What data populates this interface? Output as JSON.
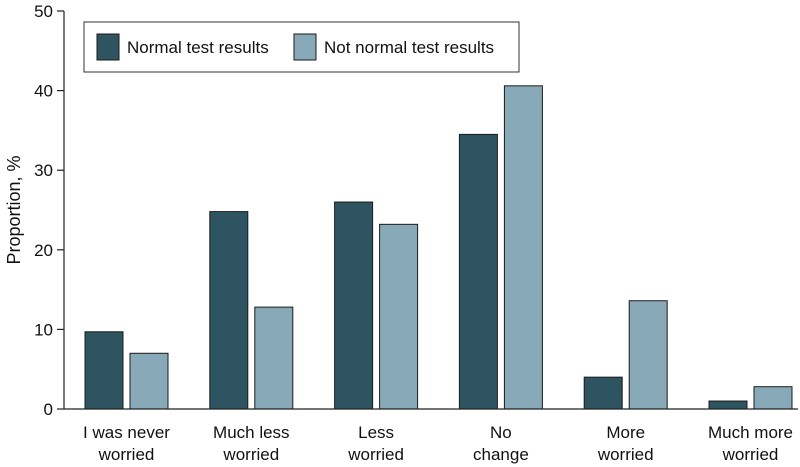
{
  "chart_data": {
    "type": "bar",
    "title": "",
    "xlabel": "",
    "ylabel": "Proportion, %",
    "ylim": [
      0,
      50
    ],
    "yticks": [
      0,
      10,
      20,
      30,
      40,
      50
    ],
    "grid": false,
    "legend_position": "top-left",
    "categories": [
      "I was never worried",
      "Much less worried",
      "Less worried",
      "No change",
      "More worried",
      "Much more worried"
    ],
    "category_label_lines": [
      [
        "I was never",
        "worried"
      ],
      [
        "Much less",
        "worried"
      ],
      [
        "Less",
        "worried"
      ],
      [
        "No",
        "change"
      ],
      [
        "More",
        "worried"
      ],
      [
        "Much more",
        "worried"
      ]
    ],
    "series": [
      {
        "name": "Normal test results",
        "color": "#2e5361",
        "values": [
          9.7,
          24.8,
          26.0,
          34.5,
          4.0,
          1.0
        ]
      },
      {
        "name": "Not normal test results",
        "color": "#88a9b8",
        "values": [
          7.0,
          12.8,
          23.2,
          40.6,
          13.6,
          2.8
        ]
      }
    ]
  }
}
